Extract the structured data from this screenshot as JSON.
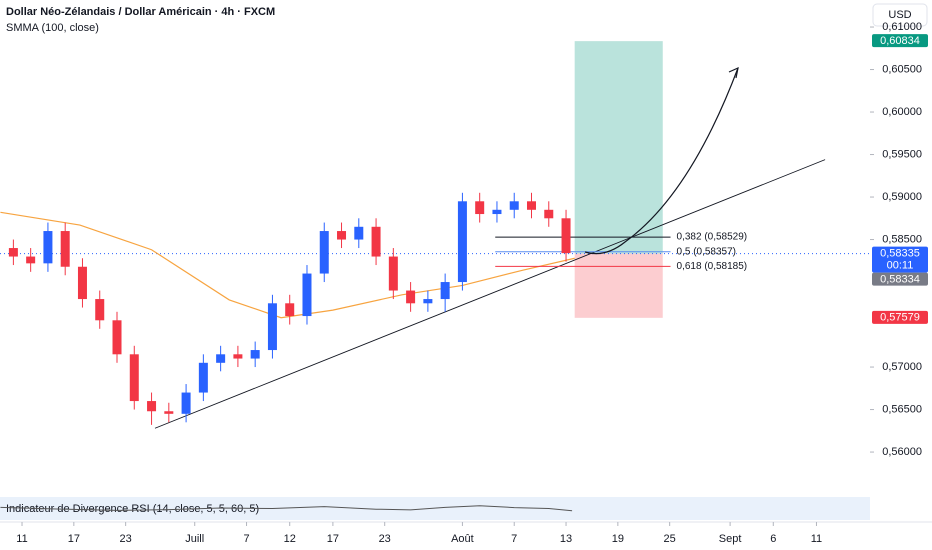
{
  "chart_data": {
    "type": "candlestick",
    "title": "Dollar Néo-Zélandais / Dollar Américain · 4h · FXCM",
    "currency": "USD",
    "x": [
      10,
      12,
      14,
      16,
      18,
      20,
      22,
      24,
      26,
      28,
      30,
      32,
      34,
      36,
      38,
      40,
      42,
      44,
      46,
      48,
      50,
      52,
      54,
      56,
      58,
      60,
      62,
      64,
      66,
      68,
      70,
      72,
      74
    ],
    "open": [
      0.584,
      0.583,
      0.5822,
      0.586,
      0.5818,
      0.578,
      0.5755,
      0.5715,
      0.566,
      0.5648,
      0.5645,
      0.567,
      0.5705,
      0.5715,
      0.571,
      0.572,
      0.5775,
      0.576,
      0.581,
      0.586,
      0.585,
      0.5865,
      0.583,
      0.579,
      0.5775,
      0.578,
      0.58,
      0.5895,
      0.588,
      0.5885,
      0.5895,
      0.5885,
      0.5875
    ],
    "high": [
      0.585,
      0.584,
      0.587,
      0.587,
      0.5828,
      0.579,
      0.5765,
      0.5725,
      0.567,
      0.5658,
      0.568,
      0.5715,
      0.5725,
      0.5725,
      0.573,
      0.5785,
      0.5785,
      0.582,
      0.587,
      0.587,
      0.5875,
      0.5875,
      0.584,
      0.58,
      0.579,
      0.581,
      0.5905,
      0.5905,
      0.5895,
      0.5905,
      0.5905,
      0.5895,
      0.5885
    ],
    "low": [
      0.582,
      0.5812,
      0.5812,
      0.5808,
      0.577,
      0.5745,
      0.5705,
      0.565,
      0.5632,
      0.5635,
      0.5635,
      0.566,
      0.5695,
      0.57,
      0.57,
      0.571,
      0.575,
      0.575,
      0.58,
      0.584,
      0.584,
      0.582,
      0.578,
      0.5765,
      0.5765,
      0.5765,
      0.579,
      0.587,
      0.587,
      0.5875,
      0.5875,
      0.5865,
      0.5824
    ],
    "close": [
      0.583,
      0.5822,
      0.586,
      0.5818,
      0.578,
      0.5755,
      0.5715,
      0.566,
      0.5648,
      0.5645,
      0.567,
      0.5705,
      0.5715,
      0.571,
      0.572,
      0.5775,
      0.576,
      0.581,
      0.586,
      0.585,
      0.5865,
      0.583,
      0.579,
      0.5775,
      0.578,
      0.58,
      0.5895,
      0.588,
      0.5885,
      0.5895,
      0.5885,
      0.5875,
      0.5834
    ],
    "up_color": "#2962ff",
    "down_color": "#f23645",
    "smma": {
      "name": "SMMA (100, close)",
      "color": "#f7a440",
      "x": [
        8.5,
        17.7,
        26,
        35,
        41,
        47,
        55,
        62,
        69,
        75
      ],
      "values": [
        0.5882,
        0.5867,
        0.5838,
        0.5779,
        0.5758,
        0.5767,
        0.5785,
        0.5796,
        0.5814,
        0.5828
      ]
    },
    "trendline": {
      "x": [
        26.4,
        104
      ],
      "values": [
        0.5628,
        0.5944
      ]
    },
    "fib_x": [
      65.8,
      86.1
    ],
    "fib": [
      {
        "value": 0.58529,
        "label": "0,382 (0,58529)",
        "color": "#131722"
      },
      {
        "value": 0.58357,
        "label": "0,5 (0,58357)",
        "color": "#5b8def"
      },
      {
        "value": 0.58185,
        "label": "0,618 (0,58185)",
        "color": "#f23645"
      }
    ],
    "position_x": [
      75,
      85.2
    ],
    "price_labels": [
      {
        "value": 0.60834,
        "label": "0,60834",
        "color": "#089981"
      },
      {
        "value": 0.58335,
        "label": "0,58335",
        "sub": "00:11",
        "color": "#2962ff"
      },
      {
        "value": 0.58334,
        "label": "0,58334",
        "color": "#787b86"
      },
      {
        "value": 0.57579,
        "label": "0,57579",
        "color": "#f23645"
      }
    ],
    "ylim": [
      0.55436,
      0.61318
    ],
    "yticks": [
      {
        "value": 0.56,
        "label": "0,56000"
      },
      {
        "value": 0.565,
        "label": "0,56500"
      },
      {
        "value": 0.57,
        "label": "0,57000"
      },
      {
        "value": 0.585,
        "label": "0,58500"
      },
      {
        "value": 0.59,
        "label": "0,59000"
      },
      {
        "value": 0.595,
        "label": "0,59500"
      },
      {
        "value": 0.6,
        "label": "0,60000"
      },
      {
        "value": 0.605,
        "label": "0,60500"
      },
      {
        "value": 0.61,
        "label": "0,61000"
      }
    ],
    "xlim": [
      8.45,
      109.2
    ],
    "xticks": [
      {
        "value": 11,
        "label": "11"
      },
      {
        "value": 17,
        "label": "17"
      },
      {
        "value": 23,
        "label": "23"
      },
      {
        "value": 31,
        "label": "Juill"
      },
      {
        "value": 37,
        "label": "7"
      },
      {
        "value": 42,
        "label": "12"
      },
      {
        "value": 47,
        "label": "17"
      },
      {
        "value": 53,
        "label": "23"
      },
      {
        "value": 62,
        "label": "Août"
      },
      {
        "value": 68,
        "label": "7"
      },
      {
        "value": 74,
        "label": "13"
      },
      {
        "value": 80,
        "label": "19"
      },
      {
        "value": 86,
        "label": "25"
      },
      {
        "value": 93,
        "label": "Sept"
      },
      {
        "value": 98,
        "label": "6"
      },
      {
        "value": 103,
        "label": "11"
      }
    ],
    "rsi": {
      "name": "Indicateur de Divergence RSI (14, close, 5, 5, 60, 5)",
      "color": "#555",
      "x": [
        8.5,
        15,
        22,
        28,
        34,
        40,
        46,
        52,
        56,
        60,
        64,
        68,
        72,
        74.7
      ],
      "values": [
        55,
        48,
        42,
        45,
        52,
        50,
        58,
        47,
        44,
        55,
        62,
        54,
        50,
        40
      ],
      "ylim": [
        0,
        100
      ]
    }
  }
}
